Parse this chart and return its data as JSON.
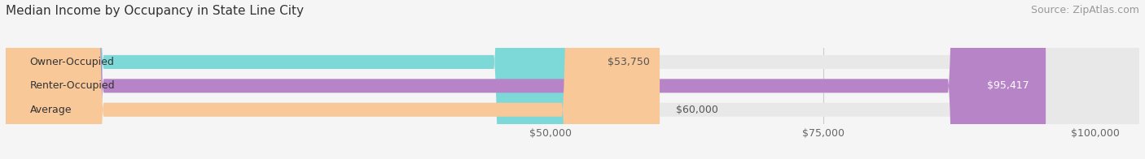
{
  "title": "Median Income by Occupancy in State Line City",
  "source": "Source: ZipAtlas.com",
  "categories": [
    "Owner-Occupied",
    "Renter-Occupied",
    "Average"
  ],
  "values": [
    53750,
    95417,
    60000
  ],
  "bar_colors": [
    "#7DD8D8",
    "#B884C8",
    "#F8C899"
  ],
  "value_labels": [
    "$53,750",
    "$95,417",
    "$60,000"
  ],
  "x_ticks": [
    50000,
    75000,
    100000
  ],
  "x_tick_labels": [
    "$50,000",
    "$75,000",
    "$100,000"
  ],
  "xlim": [
    0,
    104000
  ],
  "background_color": "#f5f5f5",
  "bar_background_color": "#e8e8e8",
  "title_fontsize": 11,
  "source_fontsize": 9,
  "label_fontsize": 9,
  "tick_fontsize": 9,
  "bar_height": 0.58,
  "bar_label_color": "#555555",
  "value_label_inside_color": "#ffffff",
  "category_label_color": "#333333"
}
